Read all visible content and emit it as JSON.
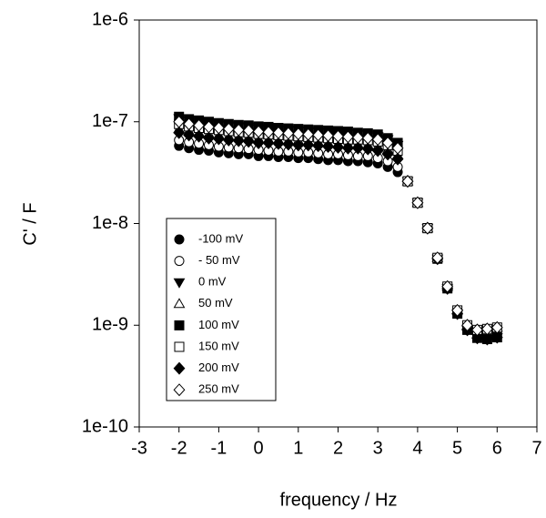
{
  "chart_data": {
    "type": "scatter",
    "x_label": "frequency / Hz",
    "y_label": "C' / F",
    "xlim": [
      -3,
      7
    ],
    "xticks": [
      -3,
      -2,
      -1,
      0,
      1,
      2,
      3,
      4,
      5,
      6,
      7
    ],
    "ylim": [
      1e-10,
      1e-06
    ],
    "y_log": true,
    "yticks": [
      {
        "value": 1e-10,
        "label": "1e-10"
      },
      {
        "value": 1e-09,
        "label": "1e-9"
      },
      {
        "value": 1e-08,
        "label": "1e-8"
      },
      {
        "value": 1e-07,
        "label": "1e-7"
      },
      {
        "value": 1e-06,
        "label": "1e-6"
      }
    ],
    "legend_position": "lower-left",
    "x": [
      -2,
      -1.75,
      -1.5,
      -1.25,
      -1,
      -0.75,
      -0.5,
      -0.25,
      0,
      0.25,
      0.5,
      0.75,
      1,
      1.25,
      1.5,
      1.75,
      2,
      2.25,
      2.5,
      2.75,
      3,
      3.25,
      3.5,
      3.75,
      4,
      4.25,
      4.5,
      4.75,
      5,
      5.25,
      5.5,
      5.75,
      6
    ],
    "series": [
      {
        "name": "-100 mV",
        "color": "#000000",
        "marker": "circle",
        "filled": true,
        "values": [
          5.8e-08,
          5.5e-08,
          5.3e-08,
          5.2e-08,
          5e-08,
          4.9e-08,
          4.8e-08,
          4.8e-08,
          4.6e-08,
          4.6e-08,
          4.5e-08,
          4.5e-08,
          4.4e-08,
          4.4e-08,
          4.3e-08,
          4.2e-08,
          4.2e-08,
          4.1e-08,
          4.1e-08,
          4e-08,
          3.9e-08,
          3.6e-08,
          3.2e-08,
          2.6e-08,
          1.6e-08,
          9e-09,
          4.5e-09,
          2.3e-09,
          1.3e-09,
          9e-10,
          7.5e-10,
          7.3e-10,
          7.6e-10
        ]
      },
      {
        "name": "- 50 mV",
        "color": "#000000",
        "marker": "circle",
        "filled": false,
        "values": [
          6.6e-08,
          6.3e-08,
          6.1e-08,
          5.9e-08,
          5.7e-08,
          5.6e-08,
          5.5e-08,
          5.4e-08,
          5.3e-08,
          5.2e-08,
          5.1e-08,
          5.1e-08,
          5e-08,
          5e-08,
          4.9e-08,
          4.8e-08,
          4.8e-08,
          4.7e-08,
          4.6e-08,
          4.6e-08,
          4.4e-08,
          4.1e-08,
          3.6e-08,
          2.6e-08,
          1.6e-08,
          9e-09,
          4.6e-09,
          2.4e-09,
          1.4e-09,
          1e-09,
          9e-10,
          9.2e-10,
          9.5e-10
        ]
      },
      {
        "name": "0 mV",
        "color": "#000000",
        "marker": "triangle-down",
        "filled": true,
        "values": [
          1.08e-07,
          1.03e-07,
          9.9e-08,
          9.6e-08,
          9.4e-08,
          9.2e-08,
          9e-08,
          8.9e-08,
          8.6e-08,
          8.5e-08,
          8.4e-08,
          8.3e-08,
          8.2e-08,
          8.1e-08,
          8e-08,
          7.9e-08,
          7.8e-08,
          7.7e-08,
          7.6e-08,
          7.5e-08,
          7.2e-08,
          6.7e-08,
          5.9e-08,
          2.6e-08,
          1.6e-08,
          9e-09,
          4.5e-09,
          2.3e-09,
          1.3e-09,
          9e-10,
          7.5e-10,
          7.3e-10,
          7.6e-10
        ]
      },
      {
        "name": "50 mV",
        "color": "#000000",
        "marker": "triangle-up",
        "filled": false,
        "values": [
          8.5e-08,
          8.1e-08,
          7.8e-08,
          7.6e-08,
          7.4e-08,
          7.2e-08,
          7.1e-08,
          7e-08,
          6.8e-08,
          6.7e-08,
          6.6e-08,
          6.5e-08,
          6.5e-08,
          6.4e-08,
          6.3e-08,
          6.2e-08,
          6.1e-08,
          6e-08,
          6e-08,
          5.9e-08,
          5.7e-08,
          5.3e-08,
          4.7e-08,
          2.6e-08,
          1.6e-08,
          9e-09,
          4.6e-09,
          2.4e-09,
          1.4e-09,
          1e-09,
          9e-10,
          9.2e-10,
          9.5e-10
        ]
      },
      {
        "name": "100 mV",
        "color": "#000000",
        "marker": "square",
        "filled": true,
        "values": [
          1.12e-07,
          1.06e-07,
          1.03e-07,
          1e-07,
          9.7e-08,
          9.5e-08,
          9.3e-08,
          9.2e-08,
          9e-08,
          8.9e-08,
          8.7e-08,
          8.6e-08,
          8.5e-08,
          8.4e-08,
          8.3e-08,
          8.2e-08,
          8.1e-08,
          8e-08,
          7.8e-08,
          7.7e-08,
          7.5e-08,
          6.9e-08,
          6.2e-08,
          2.6e-08,
          1.6e-08,
          9e-09,
          4.5e-09,
          2.3e-09,
          1.3e-09,
          9e-10,
          7.5e-10,
          7.3e-10,
          7.6e-10
        ]
      },
      {
        "name": "150 mV",
        "color": "#000000",
        "marker": "square",
        "filled": false,
        "values": [
          9.5e-08,
          9e-08,
          8.7e-08,
          8.5e-08,
          8.3e-08,
          8.1e-08,
          7.9e-08,
          7.8e-08,
          7.6e-08,
          7.5e-08,
          7.4e-08,
          7.3e-08,
          7.2e-08,
          7.1e-08,
          7e-08,
          6.9e-08,
          6.8e-08,
          6.7e-08,
          6.7e-08,
          6.6e-08,
          6.4e-08,
          5.9e-08,
          5.2e-08,
          2.6e-08,
          1.6e-08,
          9e-09,
          4.6e-09,
          2.4e-09,
          1.4e-09,
          1e-09,
          9e-10,
          9.2e-10,
          9.5e-10
        ]
      },
      {
        "name": "200 mV",
        "color": "#000000",
        "marker": "diamond",
        "filled": true,
        "values": [
          7.8e-08,
          7.4e-08,
          7.2e-08,
          6.9e-08,
          6.8e-08,
          6.6e-08,
          6.5e-08,
          6.4e-08,
          6.2e-08,
          6.2e-08,
          6.1e-08,
          6e-08,
          5.9e-08,
          5.9e-08,
          5.8e-08,
          5.7e-08,
          5.6e-08,
          5.5e-08,
          5.5e-08,
          5.4e-08,
          5.2e-08,
          4.8e-08,
          4.3e-08,
          2.6e-08,
          1.6e-08,
          9e-09,
          4.5e-09,
          2.3e-09,
          1.3e-09,
          9e-10,
          7.5e-10,
          7.3e-10,
          7.6e-10
        ]
      },
      {
        "name": "250 mV",
        "color": "#000000",
        "marker": "diamond",
        "filled": false,
        "values": [
          1e-07,
          9.5e-08,
          9.2e-08,
          8.9e-08,
          8.7e-08,
          8.5e-08,
          8.3e-08,
          8.2e-08,
          8e-08,
          7.9e-08,
          7.8e-08,
          7.7e-08,
          7.6e-08,
          7.5e-08,
          7.4e-08,
          7.3e-08,
          7.2e-08,
          7.1e-08,
          7e-08,
          6.9e-08,
          6.7e-08,
          6.2e-08,
          5.5e-08,
          2.6e-08,
          1.6e-08,
          9e-09,
          4.6e-09,
          2.4e-09,
          1.4e-09,
          1e-09,
          9e-10,
          9.2e-10,
          9.5e-10
        ]
      }
    ]
  }
}
